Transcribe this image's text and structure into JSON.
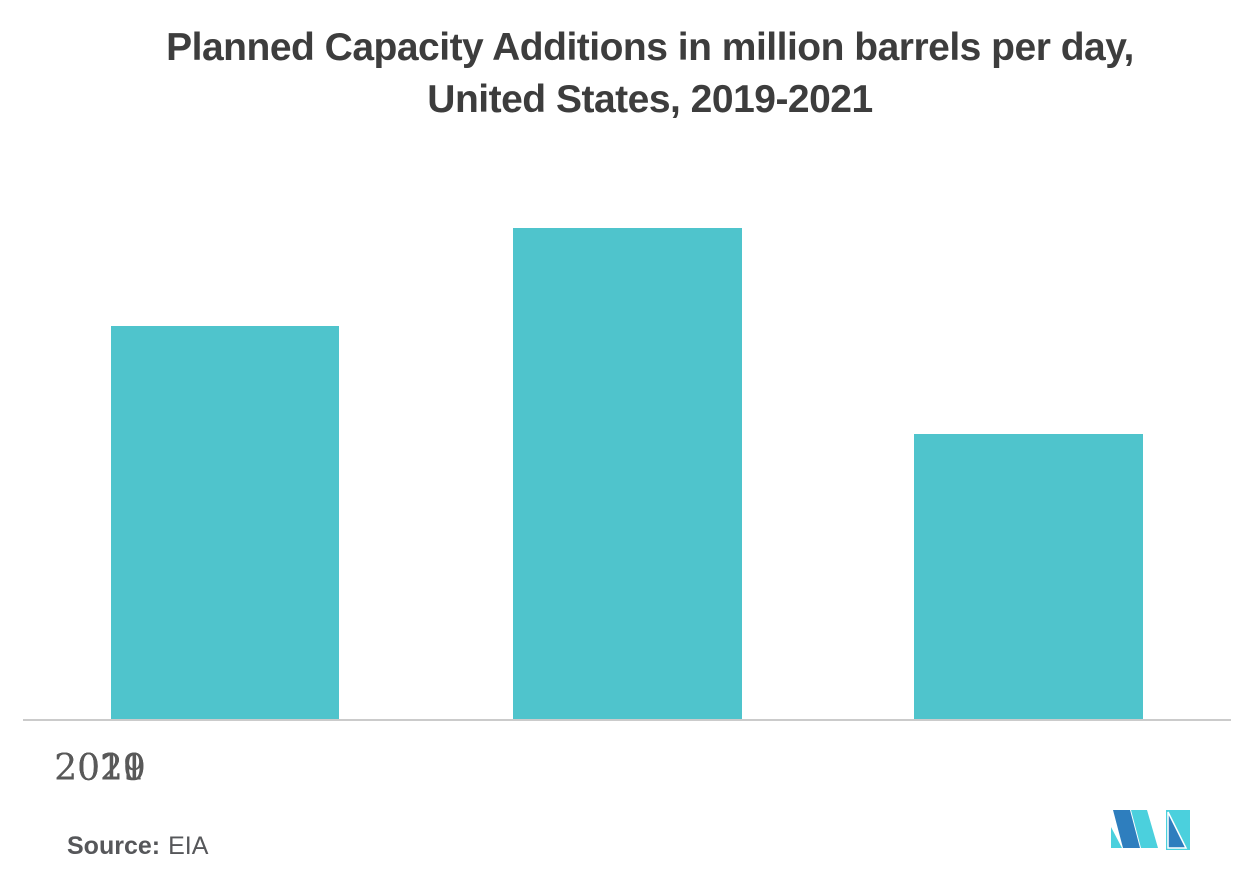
{
  "header": {
    "title_line1": "Planned Capacity Additions in million barrels per day,",
    "title_line2": "United States, 2019-2021"
  },
  "chart_data": {
    "type": "bar",
    "title": "Planned Capacity Additions in million barrels per day, United States, 2019-2021",
    "categories": [
      "2019",
      "2020",
      "2021"
    ],
    "values": [
      0.8,
      1.0,
      0.58
    ],
    "value_note": "no y-axis, gridlines or data labels are shown; values are relative bar heights with tallest bar (2020) = 1.00",
    "xlabel": "",
    "ylabel": "",
    "ylim": [
      0,
      1.2
    ],
    "grid": false,
    "legend": false,
    "bar_color": "#4FC4CC"
  },
  "footer": {
    "source_label": "Source:",
    "source_value": "EIA"
  },
  "logo": {
    "name": "mordor-intelligence-logo"
  },
  "colors": {
    "background": "#FFFFFF",
    "bar": "#4FC4CC",
    "axis_line": "#CBCBCB",
    "title_text": "#3D3D3D",
    "tick_text": "#595959",
    "source_text": "#56575A",
    "logo_teal": "#4BD0DD",
    "logo_blue": "#2E7EBE"
  }
}
